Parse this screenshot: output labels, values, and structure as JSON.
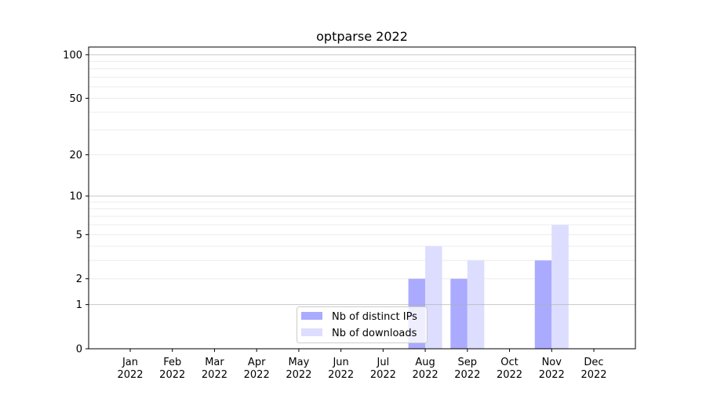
{
  "chart_data": {
    "type": "bar",
    "title": "optparse 2022",
    "xlabel": "",
    "ylabel": "",
    "y_scale": "log(1+y)",
    "ylim": [
      0,
      113
    ],
    "yticks": [
      0,
      1,
      2,
      5,
      10,
      20,
      50,
      100
    ],
    "grid": true,
    "legend_position": "lower-center",
    "categories": [
      "Jan\n2022",
      "Feb\n2022",
      "Mar\n2022",
      "Apr\n2022",
      "May\n2022",
      "Jun\n2022",
      "Jul\n2022",
      "Aug\n2022",
      "Sep\n2022",
      "Oct\n2022",
      "Nov\n2022",
      "Dec\n2022"
    ],
    "series": [
      {
        "name": "Nb of distinct IPs",
        "color": "#aaaaff",
        "values": [
          0,
          0,
          0,
          0,
          0,
          0,
          0,
          2,
          2,
          0,
          3,
          0
        ]
      },
      {
        "name": "Nb of downloads",
        "color": "#ddddff",
        "values": [
          0,
          0,
          0,
          0,
          0,
          0,
          0,
          4,
          3,
          0,
          6,
          0
        ]
      }
    ]
  }
}
